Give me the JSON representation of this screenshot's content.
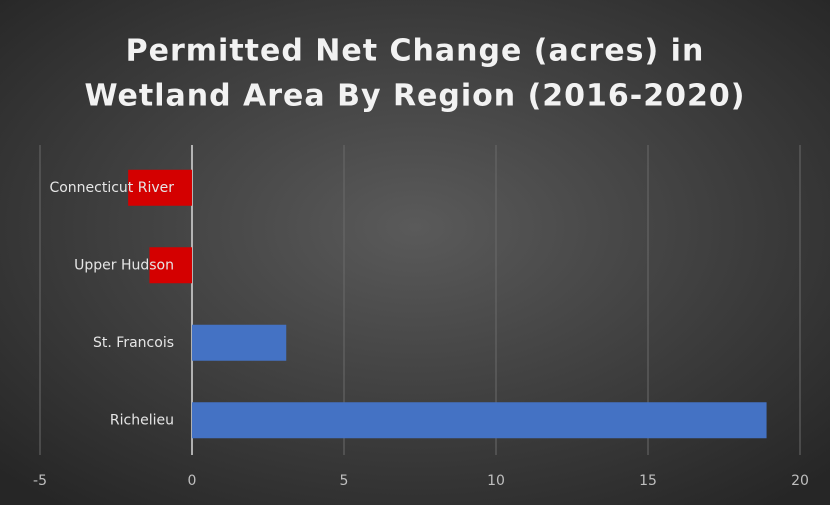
{
  "chart_data": {
    "type": "hbar",
    "title": [
      "Permitted Net Change (acres) in",
      "Wetland Area By Region (2016-2020)"
    ],
    "categories": [
      "Connecticut River",
      "Upper Hudson",
      "St. Francois",
      "Richelieu"
    ],
    "values": [
      -2.1,
      -1.4,
      3.1,
      18.9
    ],
    "colors": [
      "#d40000",
      "#d40000",
      "#4472c4",
      "#4472c4"
    ],
    "xlim": [
      -5,
      20
    ],
    "xticks": [
      -5,
      0,
      5,
      10,
      15,
      20
    ],
    "grid": true
  }
}
